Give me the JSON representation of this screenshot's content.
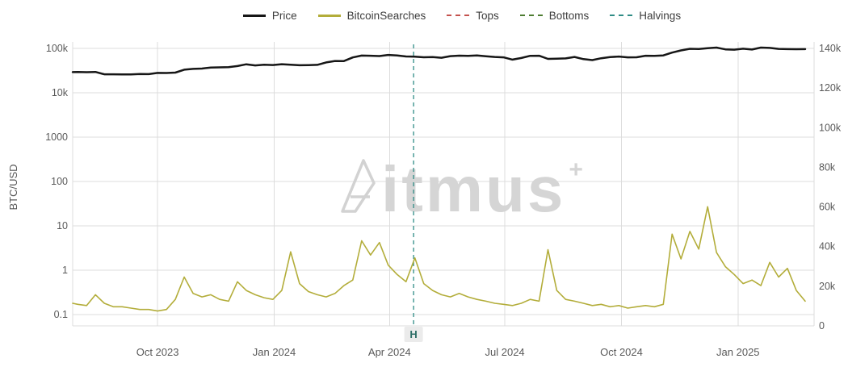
{
  "legend": {
    "items": [
      {
        "id": "price",
        "label": "Price",
        "color": "#161616",
        "dash": "solid",
        "width": 3.5
      },
      {
        "id": "bitcoin-searches",
        "label": "BitcoinSearches",
        "color": "#b3ad3a",
        "dash": "solid",
        "width": 3.5
      },
      {
        "id": "tops",
        "label": "Tops",
        "color": "#c4524e",
        "dash": "dashed",
        "width": 2
      },
      {
        "id": "bottoms",
        "label": "Bottoms",
        "color": "#4e7d32",
        "dash": "dashed",
        "width": 2
      },
      {
        "id": "halvings",
        "label": "Halvings",
        "color": "#2f8c85",
        "dash": "dashed",
        "width": 2
      }
    ]
  },
  "watermark": {
    "brand": "Bitmus",
    "display_text": "itmus",
    "superscript": "+"
  },
  "chart_data": {
    "type": "line",
    "title": "",
    "ylabel": "BTC/USD",
    "grid": true,
    "legend_position": "top-center",
    "x_axis": {
      "type": "time",
      "range": [
        "2023-07-26",
        "2025-03-02"
      ],
      "tick_dates": [
        "2023-10-01",
        "2024-01-01",
        "2024-04-01",
        "2024-07-01",
        "2024-10-01",
        "2025-01-01"
      ],
      "tick_labels": [
        "Oct 2023",
        "Jan 2024",
        "Apr 2024",
        "Jul 2024",
        "Oct 2024",
        "Jan 2025"
      ]
    },
    "y_axis_left": {
      "label": "BTC/USD",
      "scale": "log",
      "tick_values": [
        100000,
        10000,
        1000,
        100,
        10,
        1,
        0.1
      ],
      "tick_labels": [
        "100k",
        "10k",
        "1000",
        "100",
        "10",
        "1",
        "0.1"
      ]
    },
    "y_axis_right": {
      "scale": "linear",
      "min": 0,
      "max": 140000,
      "tick_values": [
        140000,
        120000,
        100000,
        80000,
        60000,
        40000,
        20000,
        0
      ],
      "tick_labels": [
        "140k",
        "120k",
        "100k",
        "80k",
        "60k",
        "40k",
        "20k",
        "0"
      ]
    },
    "event_lines": [
      {
        "name": "Halvings",
        "label": "H",
        "date": "2024-04-20",
        "color": "#2f8c85",
        "style": "dashed"
      }
    ],
    "series": [
      {
        "name": "Price",
        "axis": "left",
        "color": "#161616",
        "line_width": 2.5,
        "points": [
          [
            "2023-07-26",
            29200
          ],
          [
            "2023-07-30",
            29300
          ],
          [
            "2023-08-06",
            29050
          ],
          [
            "2023-08-13",
            29400
          ],
          [
            "2023-08-20",
            26100
          ],
          [
            "2023-08-27",
            26050
          ],
          [
            "2023-09-03",
            25900
          ],
          [
            "2023-09-10",
            25850
          ],
          [
            "2023-09-17",
            26550
          ],
          [
            "2023-09-24",
            26250
          ],
          [
            "2023-10-01",
            27950
          ],
          [
            "2023-10-08",
            27900
          ],
          [
            "2023-10-15",
            28500
          ],
          [
            "2023-10-22",
            33100
          ],
          [
            "2023-10-29",
            34500
          ],
          [
            "2023-11-05",
            35050
          ],
          [
            "2023-11-12",
            37100
          ],
          [
            "2023-11-19",
            37400
          ],
          [
            "2023-11-26",
            37800
          ],
          [
            "2023-12-03",
            39950
          ],
          [
            "2023-12-10",
            43800
          ],
          [
            "2023-12-17",
            41350
          ],
          [
            "2023-12-24",
            43000
          ],
          [
            "2023-12-31",
            42250
          ],
          [
            "2024-01-07",
            43950
          ],
          [
            "2024-01-14",
            42850
          ],
          [
            "2024-01-21",
            41650
          ],
          [
            "2024-01-28",
            42050
          ],
          [
            "2024-02-04",
            42600
          ],
          [
            "2024-02-11",
            48250
          ],
          [
            "2024-02-18",
            52150
          ],
          [
            "2024-02-25",
            51750
          ],
          [
            "2024-03-03",
            62450
          ],
          [
            "2024-03-10",
            69000
          ],
          [
            "2024-03-17",
            68400
          ],
          [
            "2024-03-24",
            67200
          ],
          [
            "2024-03-31",
            71300
          ],
          [
            "2024-04-07",
            69400
          ],
          [
            "2024-04-14",
            65700
          ],
          [
            "2024-04-21",
            64950
          ],
          [
            "2024-04-28",
            63100
          ],
          [
            "2024-05-05",
            64000
          ],
          [
            "2024-05-12",
            61500
          ],
          [
            "2024-05-19",
            66900
          ],
          [
            "2024-05-26",
            68550
          ],
          [
            "2024-06-02",
            67750
          ],
          [
            "2024-06-09",
            69600
          ],
          [
            "2024-06-16",
            66650
          ],
          [
            "2024-06-23",
            64250
          ],
          [
            "2024-06-30",
            62750
          ],
          [
            "2024-07-07",
            55900
          ],
          [
            "2024-07-14",
            60800
          ],
          [
            "2024-07-21",
            68150
          ],
          [
            "2024-07-28",
            68250
          ],
          [
            "2024-08-04",
            58100
          ],
          [
            "2024-08-11",
            58700
          ],
          [
            "2024-08-18",
            59500
          ],
          [
            "2024-08-25",
            64100
          ],
          [
            "2024-09-01",
            57300
          ],
          [
            "2024-09-08",
            54600
          ],
          [
            "2024-09-15",
            60000
          ],
          [
            "2024-09-22",
            63600
          ],
          [
            "2024-09-29",
            65600
          ],
          [
            "2024-10-06",
            62800
          ],
          [
            "2024-10-13",
            63200
          ],
          [
            "2024-10-20",
            68400
          ],
          [
            "2024-10-27",
            67900
          ],
          [
            "2024-11-03",
            69400
          ],
          [
            "2024-11-10",
            80400
          ],
          [
            "2024-11-17",
            89900
          ],
          [
            "2024-11-24",
            98000
          ],
          [
            "2024-12-01",
            97200
          ],
          [
            "2024-12-08",
            101200
          ],
          [
            "2024-12-15",
            104400
          ],
          [
            "2024-12-22",
            95100
          ],
          [
            "2024-12-29",
            93700
          ],
          [
            "2025-01-05",
            98300
          ],
          [
            "2025-01-12",
            94500
          ],
          [
            "2025-01-19",
            104200
          ],
          [
            "2025-01-26",
            102600
          ],
          [
            "2025-02-02",
            97700
          ],
          [
            "2025-02-09",
            96500
          ],
          [
            "2025-02-16",
            96100
          ],
          [
            "2025-02-23",
            96300
          ]
        ]
      },
      {
        "name": "BitcoinSearches",
        "axis": "left",
        "color": "#b3ad3a",
        "line_width": 1.6,
        "points": [
          [
            "2023-07-26",
            0.18
          ],
          [
            "2023-07-30",
            0.17
          ],
          [
            "2023-08-06",
            0.16
          ],
          [
            "2023-08-13",
            0.28
          ],
          [
            "2023-08-20",
            0.18
          ],
          [
            "2023-08-27",
            0.15
          ],
          [
            "2023-09-03",
            0.15
          ],
          [
            "2023-09-10",
            0.14
          ],
          [
            "2023-09-17",
            0.13
          ],
          [
            "2023-09-24",
            0.13
          ],
          [
            "2023-10-01",
            0.12
          ],
          [
            "2023-10-08",
            0.13
          ],
          [
            "2023-10-15",
            0.22
          ],
          [
            "2023-10-22",
            0.7
          ],
          [
            "2023-10-29",
            0.3
          ],
          [
            "2023-11-05",
            0.25
          ],
          [
            "2023-11-12",
            0.28
          ],
          [
            "2023-11-19",
            0.22
          ],
          [
            "2023-11-26",
            0.2
          ],
          [
            "2023-12-03",
            0.55
          ],
          [
            "2023-12-10",
            0.35
          ],
          [
            "2023-12-17",
            0.28
          ],
          [
            "2023-12-24",
            0.24
          ],
          [
            "2023-12-31",
            0.22
          ],
          [
            "2024-01-07",
            0.35
          ],
          [
            "2024-01-14",
            2.6
          ],
          [
            "2024-01-21",
            0.5
          ],
          [
            "2024-01-28",
            0.33
          ],
          [
            "2024-02-04",
            0.28
          ],
          [
            "2024-02-11",
            0.25
          ],
          [
            "2024-02-18",
            0.3
          ],
          [
            "2024-02-25",
            0.45
          ],
          [
            "2024-03-03",
            0.6
          ],
          [
            "2024-03-10",
            4.6
          ],
          [
            "2024-03-17",
            2.2
          ],
          [
            "2024-03-24",
            4.2
          ],
          [
            "2024-03-31",
            1.3
          ],
          [
            "2024-04-07",
            0.8
          ],
          [
            "2024-04-14",
            0.55
          ],
          [
            "2024-04-21",
            1.9
          ],
          [
            "2024-04-28",
            0.5
          ],
          [
            "2024-05-05",
            0.35
          ],
          [
            "2024-05-12",
            0.28
          ],
          [
            "2024-05-19",
            0.25
          ],
          [
            "2024-05-26",
            0.3
          ],
          [
            "2024-06-02",
            0.25
          ],
          [
            "2024-06-09",
            0.22
          ],
          [
            "2024-06-16",
            0.2
          ],
          [
            "2024-06-23",
            0.18
          ],
          [
            "2024-06-30",
            0.17
          ],
          [
            "2024-07-07",
            0.16
          ],
          [
            "2024-07-14",
            0.18
          ],
          [
            "2024-07-21",
            0.22
          ],
          [
            "2024-07-28",
            0.2
          ],
          [
            "2024-08-04",
            2.9
          ],
          [
            "2024-08-11",
            0.35
          ],
          [
            "2024-08-18",
            0.22
          ],
          [
            "2024-08-25",
            0.2
          ],
          [
            "2024-09-01",
            0.18
          ],
          [
            "2024-09-08",
            0.16
          ],
          [
            "2024-09-15",
            0.17
          ],
          [
            "2024-09-22",
            0.15
          ],
          [
            "2024-09-29",
            0.16
          ],
          [
            "2024-10-06",
            0.14
          ],
          [
            "2024-10-13",
            0.15
          ],
          [
            "2024-10-20",
            0.16
          ],
          [
            "2024-10-27",
            0.15
          ],
          [
            "2024-11-03",
            0.17
          ],
          [
            "2024-11-10",
            6.5
          ],
          [
            "2024-11-17",
            1.8
          ],
          [
            "2024-11-24",
            7.5
          ],
          [
            "2024-12-01",
            3
          ],
          [
            "2024-12-08",
            27
          ],
          [
            "2024-12-15",
            2.5
          ],
          [
            "2024-12-22",
            1.2
          ],
          [
            "2024-12-29",
            0.8
          ],
          [
            "2025-01-05",
            0.5
          ],
          [
            "2025-01-12",
            0.6
          ],
          [
            "2025-01-19",
            0.45
          ],
          [
            "2025-01-26",
            1.5
          ],
          [
            "2025-02-02",
            0.7
          ],
          [
            "2025-02-09",
            1.1
          ],
          [
            "2025-02-16",
            0.35
          ],
          [
            "2025-02-23",
            0.2
          ]
        ]
      }
    ]
  }
}
